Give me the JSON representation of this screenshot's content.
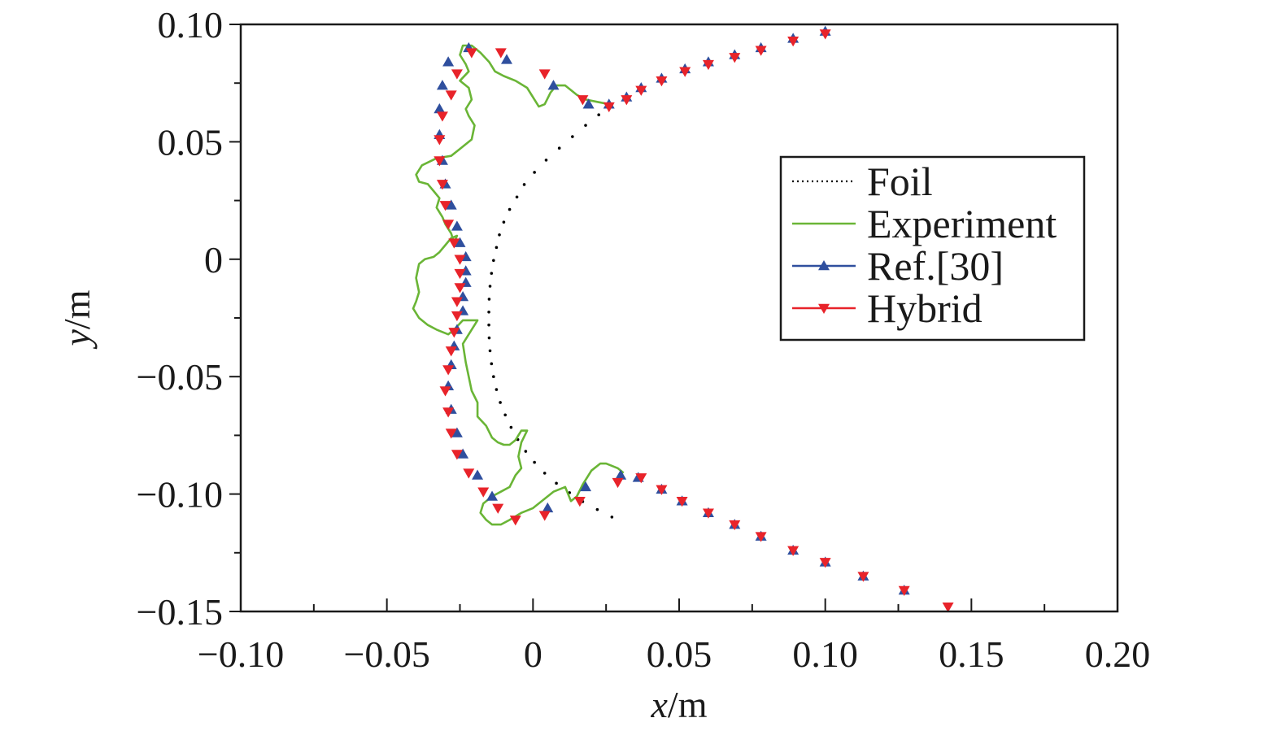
{
  "chart_data": {
    "type": "scatter",
    "title": "",
    "xlabel": {
      "var": "x",
      "unit": "/m"
    },
    "ylabel": {
      "var": "y",
      "unit": "/m"
    },
    "xlim": [
      -0.1,
      0.2
    ],
    "ylim": [
      -0.15,
      0.1
    ],
    "x_ticks": [
      -0.1,
      -0.05,
      0,
      0.05,
      0.1,
      0.15,
      0.2
    ],
    "x_tick_labels": [
      "−0.10",
      "−0.05",
      "0",
      "0.05",
      "0.10",
      "0.15",
      "0.20"
    ],
    "y_ticks": [
      0.1,
      0.05,
      0,
      -0.05,
      -0.1,
      -0.15
    ],
    "y_tick_labels": [
      "0.10",
      "0.05",
      "0",
      "−0.05",
      "−0.10",
      "−0.15"
    ],
    "x_minor_step": 0.025,
    "y_minor_step": 0.025,
    "legend": {
      "position": "right",
      "entries": [
        {
          "label": "Foil",
          "color": "#000000",
          "style": "dotted-line"
        },
        {
          "label": "Experiment",
          "color": "#6ab536",
          "style": "line"
        },
        {
          "label": "Ref.[30]",
          "color": "#2f4f9e",
          "style": "line-triangle-up"
        },
        {
          "label": "Hybrid",
          "color": "#e8232a",
          "style": "line-triangle-down"
        }
      ]
    },
    "series": [
      {
        "name": "Foil",
        "color": "#000000",
        "marker": "dot",
        "x": [
          0.027,
          0.0225,
          0.018,
          0.0135,
          0.009,
          0.0045,
          0.0005,
          -0.003,
          -0.0055,
          -0.008,
          -0.01,
          -0.0115,
          -0.0125,
          -0.0135,
          -0.0142,
          -0.0147,
          -0.015,
          -0.0151,
          -0.0151,
          -0.015,
          -0.0147,
          -0.0142,
          -0.0135,
          -0.0125,
          -0.0112,
          -0.0095,
          -0.0075,
          -0.0052,
          -0.0025,
          0.0005,
          0.004,
          0.008,
          0.0125,
          0.017,
          0.022,
          0.027
        ],
        "y": [
          0.066,
          0.0615,
          0.057,
          0.0522,
          0.0473,
          0.0422,
          0.037,
          0.0318,
          0.0265,
          0.0212,
          0.0158,
          0.0104,
          0.005,
          -0.0005,
          -0.006,
          -0.0115,
          -0.017,
          -0.0225,
          -0.028,
          -0.0335,
          -0.039,
          -0.0445,
          -0.05,
          -0.0555,
          -0.061,
          -0.0663,
          -0.0716,
          -0.0768,
          -0.0818,
          -0.0865,
          -0.0911,
          -0.0954,
          -0.0994,
          -0.1032,
          -0.1066,
          -0.1098
        ]
      },
      {
        "name": "Experiment",
        "color": "#6ab536",
        "marker": "none",
        "x": [
          0.026,
          0.022,
          0.018,
          0.015,
          0.011,
          0.008,
          0.006,
          0.004,
          0.002,
          0.001,
          -0.002,
          -0.006,
          -0.01,
          -0.013,
          -0.015,
          -0.018,
          -0.021,
          -0.024,
          -0.025,
          -0.023,
          -0.022,
          -0.025,
          -0.022,
          -0.021,
          -0.023,
          -0.022,
          -0.02,
          -0.021,
          -0.025,
          -0.028,
          -0.033,
          -0.038,
          -0.04,
          -0.039,
          -0.036,
          -0.034,
          -0.032,
          -0.033,
          -0.031,
          -0.03,
          -0.028,
          -0.027,
          -0.026,
          -0.028,
          -0.03,
          -0.032,
          -0.034,
          -0.037,
          -0.039,
          -0.04,
          -0.039,
          -0.04,
          -0.041,
          -0.039,
          -0.036,
          -0.033,
          -0.031,
          -0.029,
          -0.027,
          -0.024,
          -0.019,
          -0.021,
          -0.024,
          -0.023,
          -0.022,
          -0.021,
          -0.019,
          -0.019,
          -0.016,
          -0.014,
          -0.012,
          -0.01,
          -0.008,
          -0.006,
          -0.004,
          -0.002,
          -0.004,
          -0.005,
          -0.004,
          -0.006,
          -0.008,
          -0.011,
          -0.014,
          -0.017,
          -0.018,
          -0.016,
          -0.014,
          -0.011,
          -0.008,
          -0.004,
          0,
          0.004,
          0.007,
          0.011,
          0.012,
          0.013,
          0.015,
          0.017,
          0.02,
          0.023,
          0.025,
          0.027,
          0.029,
          0.031
        ],
        "y": [
          0.066,
          0.067,
          0.068,
          0.07,
          0.074,
          0.074,
          0.071,
          0.066,
          0.065,
          0.067,
          0.073,
          0.076,
          0.078,
          0.08,
          0.084,
          0.088,
          0.091,
          0.091,
          0.087,
          0.083,
          0.08,
          0.076,
          0.073,
          0.068,
          0.064,
          0.061,
          0.057,
          0.051,
          0.047,
          0.044,
          0.043,
          0.04,
          0.036,
          0.033,
          0.032,
          0.029,
          0.026,
          0.022,
          0.018,
          0.015,
          0.011,
          0.007,
          0.01,
          0.009,
          0.006,
          0.003,
          0.001,
          0,
          -0.002,
          -0.008,
          -0.014,
          -0.018,
          -0.021,
          -0.025,
          -0.028,
          -0.03,
          -0.031,
          -0.032,
          -0.03,
          -0.026,
          -0.026,
          -0.03,
          -0.036,
          -0.044,
          -0.05,
          -0.056,
          -0.061,
          -0.067,
          -0.071,
          -0.076,
          -0.078,
          -0.079,
          -0.079,
          -0.077,
          -0.073,
          -0.073,
          -0.078,
          -0.084,
          -0.089,
          -0.092,
          -0.097,
          -0.099,
          -0.101,
          -0.104,
          -0.108,
          -0.111,
          -0.113,
          -0.113,
          -0.111,
          -0.108,
          -0.106,
          -0.102,
          -0.099,
          -0.097,
          -0.1,
          -0.103,
          -0.101,
          -0.096,
          -0.09,
          -0.087,
          -0.087,
          -0.088,
          -0.089,
          -0.091
        ]
      },
      {
        "name": "Ref.[30]",
        "color": "#2f4f9e",
        "marker": "triangle-up",
        "x": [
          0.1,
          0.089,
          0.078,
          0.069,
          0.06,
          0.052,
          0.044,
          0.037,
          0.032,
          0.026,
          0.019,
          0.007,
          -0.009,
          -0.022,
          -0.029,
          -0.031,
          -0.032,
          -0.032,
          -0.031,
          -0.03,
          -0.028,
          -0.026,
          -0.025,
          -0.023,
          -0.023,
          -0.023,
          -0.024,
          -0.024,
          -0.026,
          -0.027,
          -0.028,
          -0.029,
          -0.028,
          -0.026,
          -0.024,
          -0.019,
          -0.014,
          0.005,
          0.018,
          0.03,
          0.036,
          0.044,
          0.051,
          0.06,
          0.069,
          0.078,
          0.089,
          0.1,
          0.113,
          0.127
        ],
        "y": [
          0.097,
          0.094,
          0.09,
          0.087,
          0.084,
          0.081,
          0.077,
          0.073,
          0.069,
          0.066,
          0.066,
          0.074,
          0.085,
          0.09,
          0.084,
          0.074,
          0.064,
          0.053,
          0.042,
          0.032,
          0.023,
          0.014,
          0.007,
          0.001,
          -0.005,
          -0.01,
          -0.016,
          -0.022,
          -0.03,
          -0.037,
          -0.045,
          -0.054,
          -0.064,
          -0.074,
          -0.083,
          -0.092,
          -0.101,
          -0.106,
          -0.097,
          -0.092,
          -0.093,
          -0.098,
          -0.103,
          -0.108,
          -0.113,
          -0.118,
          -0.124,
          -0.129,
          -0.135,
          -0.141
        ]
      },
      {
        "name": "Hybrid",
        "color": "#e8232a",
        "marker": "triangle-down",
        "x": [
          0.1,
          0.089,
          0.078,
          0.069,
          0.06,
          0.052,
          0.044,
          0.037,
          0.032,
          0.026,
          0.017,
          0.004,
          -0.011,
          -0.021,
          -0.026,
          -0.028,
          -0.031,
          -0.032,
          -0.032,
          -0.031,
          -0.03,
          -0.029,
          -0.027,
          -0.025,
          -0.025,
          -0.025,
          -0.026,
          -0.026,
          -0.027,
          -0.028,
          -0.029,
          -0.03,
          -0.029,
          -0.028,
          -0.026,
          -0.022,
          -0.017,
          -0.012,
          -0.006,
          0.004,
          0.016,
          0.029,
          0.037,
          0.044,
          0.051,
          0.06,
          0.069,
          0.078,
          0.089,
          0.1,
          0.113,
          0.127,
          0.142
        ],
        "y": [
          0.096,
          0.093,
          0.089,
          0.086,
          0.083,
          0.08,
          0.076,
          0.072,
          0.068,
          0.065,
          0.068,
          0.079,
          0.088,
          0.088,
          0.079,
          0.07,
          0.061,
          0.051,
          0.042,
          0.032,
          0.023,
          0.015,
          0.007,
          0.0,
          -0.006,
          -0.012,
          -0.018,
          -0.024,
          -0.031,
          -0.039,
          -0.047,
          -0.056,
          -0.065,
          -0.074,
          -0.083,
          -0.091,
          -0.099,
          -0.106,
          -0.111,
          -0.109,
          -0.103,
          -0.095,
          -0.093,
          -0.098,
          -0.103,
          -0.108,
          -0.113,
          -0.118,
          -0.124,
          -0.129,
          -0.135,
          -0.141,
          -0.148
        ]
      }
    ]
  }
}
